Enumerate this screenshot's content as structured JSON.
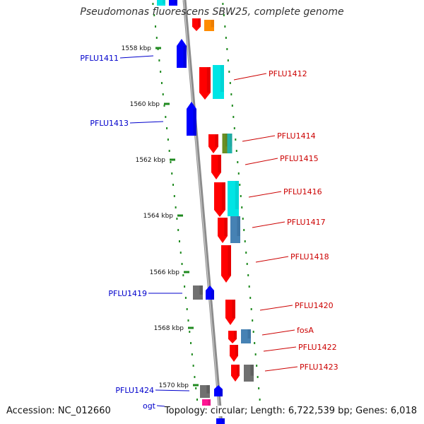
{
  "title": "Pseudomonas fluorescens SBW25, complete genome",
  "footer": {
    "accession": "Accession: NC_012660",
    "summary": "Topology: circular; Length: 6,722,539 bp; Genes: 6,018"
  },
  "colors": {
    "backbone": "#8c8c8c",
    "tick": "#1f8a1f",
    "left_label": "#0000cc",
    "right_label": "#cc0000"
  },
  "ticks": [
    "1558 kbp",
    "1560 kbp",
    "1562 kbp",
    "1564 kbp",
    "1566 kbp",
    "1568 kbp",
    "1570 kbp"
  ],
  "labels_left": [
    "PFLU1411",
    "PFLU1413",
    "PFLU1419",
    "PFLU1424",
    "ogt"
  ],
  "labels_right": [
    "PFLU1412",
    "PFLU1414",
    "PFLU1415",
    "PFLU1416",
    "PFLU1417",
    "PFLU1418",
    "PFLU1420",
    "fosA",
    "PFLU1422",
    "PFLU1423"
  ]
}
